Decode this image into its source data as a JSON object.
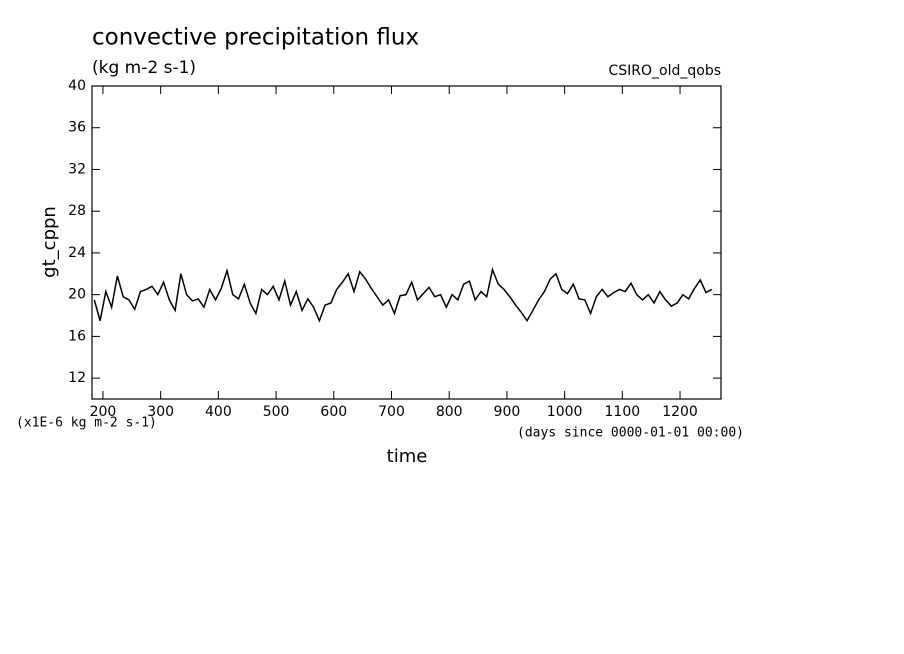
{
  "chart_data": {
    "type": "line",
    "title": "convective precipitation flux",
    "subtitle": "(kg m-2 s-1)",
    "annotation": "CSIRO_old_qobs",
    "y_label": "gt_cppn",
    "y_units": "(x1E-6 kg m-2 s-1)",
    "x_label": "time",
    "x_units": "(days since 0000-01-01 00:00)",
    "color": "#000000",
    "xlim": [
      181,
      1271
    ],
    "ylim": [
      10,
      40
    ],
    "xticks": [
      200,
      300,
      400,
      500,
      600,
      700,
      800,
      900,
      1000,
      1100,
      1200
    ],
    "yticks": [
      12,
      16,
      20,
      24,
      28,
      32,
      36,
      40
    ],
    "x": [
      185,
      195,
      205,
      215,
      225,
      235,
      245,
      255,
      265,
      275,
      285,
      295,
      305,
      315,
      325,
      335,
      345,
      355,
      365,
      375,
      385,
      395,
      405,
      415,
      425,
      435,
      445,
      455,
      465,
      475,
      485,
      495,
      505,
      515,
      525,
      535,
      545,
      555,
      565,
      575,
      585,
      595,
      605,
      615,
      625,
      635,
      645,
      655,
      665,
      675,
      685,
      695,
      705,
      715,
      725,
      735,
      745,
      755,
      765,
      775,
      785,
      795,
      805,
      815,
      825,
      835,
      845,
      855,
      865,
      875,
      885,
      895,
      905,
      915,
      925,
      935,
      945,
      955,
      965,
      975,
      985,
      995,
      1005,
      1015,
      1025,
      1035,
      1045,
      1055,
      1065,
      1075,
      1085,
      1095,
      1105,
      1115,
      1125,
      1135,
      1145,
      1155,
      1165,
      1175,
      1185,
      1195,
      1205,
      1215,
      1225,
      1235,
      1245,
      1255
    ],
    "values": [
      19.5,
      17.5,
      20.3,
      18.8,
      21.8,
      19.8,
      19.5,
      18.6,
      20.3,
      20.5,
      20.8,
      20.0,
      21.2,
      19.5,
      18.5,
      22.0,
      20.0,
      19.4,
      19.6,
      18.8,
      20.5,
      19.5,
      20.6,
      22.3,
      20.0,
      19.6,
      21.0,
      19.2,
      18.2,
      20.5,
      20.0,
      20.8,
      19.5,
      21.3,
      19.0,
      20.3,
      18.5,
      19.6,
      18.8,
      17.5,
      19.0,
      19.2,
      20.5,
      21.2,
      22.0,
      20.3,
      22.2,
      21.5,
      20.6,
      19.8,
      19.0,
      19.5,
      18.2,
      19.9,
      20.0,
      21.2,
      19.5,
      20.1,
      20.7,
      19.8,
      20.0,
      18.8,
      20.0,
      19.5,
      21.0,
      21.3,
      19.5,
      20.3,
      19.8,
      22.4,
      21.0,
      20.5,
      19.8,
      19.0,
      18.3,
      17.5,
      18.5,
      19.5,
      20.3,
      21.5,
      22.0,
      20.5,
      20.1,
      21.0,
      19.6,
      19.5,
      18.2,
      19.8,
      20.5,
      19.8,
      20.2,
      20.5,
      20.3,
      21.1,
      20.0,
      19.5,
      20.0,
      19.2,
      20.3,
      19.5,
      18.9,
      19.2,
      20.0,
      19.6,
      20.6,
      21.4,
      20.2,
      20.5
    ]
  }
}
